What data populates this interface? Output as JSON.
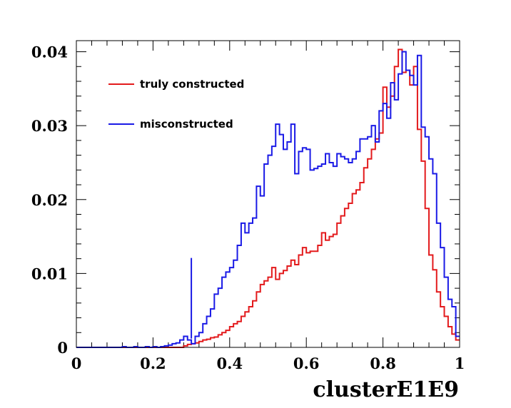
{
  "chart_data": {
    "type": "line",
    "xlabel": "clusterE1E9",
    "ylabel": "",
    "xlim": [
      0,
      1
    ],
    "ylim": [
      0,
      0.0415
    ],
    "x_ticks": [
      "0",
      "0.2",
      "0.4",
      "0.6",
      "0.8",
      "1"
    ],
    "y_ticks": [
      "0",
      "0.01",
      "0.02",
      "0.03",
      "0.04"
    ],
    "x_tick_values": [
      0,
      0.2,
      0.4,
      0.6,
      0.8,
      1.0
    ],
    "y_tick_values": [
      0,
      0.01,
      0.02,
      0.03,
      0.04
    ],
    "bin_width": 0.01,
    "legend_position": "top-left",
    "series": [
      {
        "name": "truly constructed",
        "color": "#e31a1c",
        "values": [
          0,
          0,
          0,
          0,
          0,
          0,
          0,
          0,
          0,
          0,
          0,
          0,
          0,
          0,
          0,
          0,
          0,
          0,
          0,
          0,
          0,
          0,
          0,
          0,
          0,
          0,
          0,
          0,
          0.0002,
          0.0004,
          0.0005,
          0.0006,
          0.0008,
          0.001,
          0.0011,
          0.0013,
          0.0014,
          0.0017,
          0.002,
          0.0023,
          0.0028,
          0.0032,
          0.0035,
          0.0042,
          0.0048,
          0.0055,
          0.0063,
          0.0075,
          0.0085,
          0.009,
          0.0095,
          0.0108,
          0.0092,
          0.01,
          0.0104,
          0.011,
          0.0118,
          0.0112,
          0.0125,
          0.0135,
          0.0128,
          0.013,
          0.013,
          0.0138,
          0.0155,
          0.0145,
          0.015,
          0.0153,
          0.0168,
          0.0178,
          0.0188,
          0.0195,
          0.0208,
          0.0213,
          0.0223,
          0.0243,
          0.0255,
          0.0268,
          0.0282,
          0.029,
          0.0352,
          0.0325,
          0.034,
          0.038,
          0.0403,
          0.0372,
          0.0375,
          0.0355,
          0.038,
          0.0295,
          0.0252,
          0.0188,
          0.0125,
          0.0105,
          0.0075,
          0.0055,
          0.0042,
          0.0028,
          0.0018,
          0.001
        ]
      },
      {
        "name": "misconstructed",
        "color": "#1a1ae6",
        "values": [
          0,
          0,
          0,
          0,
          0,
          0,
          0,
          0,
          0,
          0,
          0,
          0,
          0.0001,
          0,
          0,
          0.0001,
          0,
          0,
          0.0001,
          0,
          0.0001,
          0,
          0.0001,
          0.0002,
          0.0003,
          0.0005,
          0.0006,
          0.001,
          0.0015,
          0.001,
          0.0005,
          0.0015,
          0.002,
          0.0032,
          0.0042,
          0.0052,
          0.0072,
          0.008,
          0.0095,
          0.0102,
          0.0108,
          0.0118,
          0.0138,
          0.0168,
          0.0155,
          0.0168,
          0.0175,
          0.0218,
          0.0205,
          0.0248,
          0.026,
          0.0272,
          0.0302,
          0.0288,
          0.0268,
          0.0278,
          0.0302,
          0.0235,
          0.0265,
          0.027,
          0.0268,
          0.024,
          0.0242,
          0.0245,
          0.0248,
          0.0262,
          0.025,
          0.0245,
          0.0262,
          0.0258,
          0.0255,
          0.025,
          0.0255,
          0.0265,
          0.0282,
          0.0282,
          0.0285,
          0.03,
          0.0278,
          0.032,
          0.033,
          0.031,
          0.0358,
          0.0335,
          0.037,
          0.04,
          0.0375,
          0.0368,
          0.0355,
          0.0395,
          0.0298,
          0.0285,
          0.0255,
          0.0235,
          0.0168,
          0.0135,
          0.0095,
          0.0065,
          0.0055,
          0.0015
        ]
      }
    ]
  }
}
